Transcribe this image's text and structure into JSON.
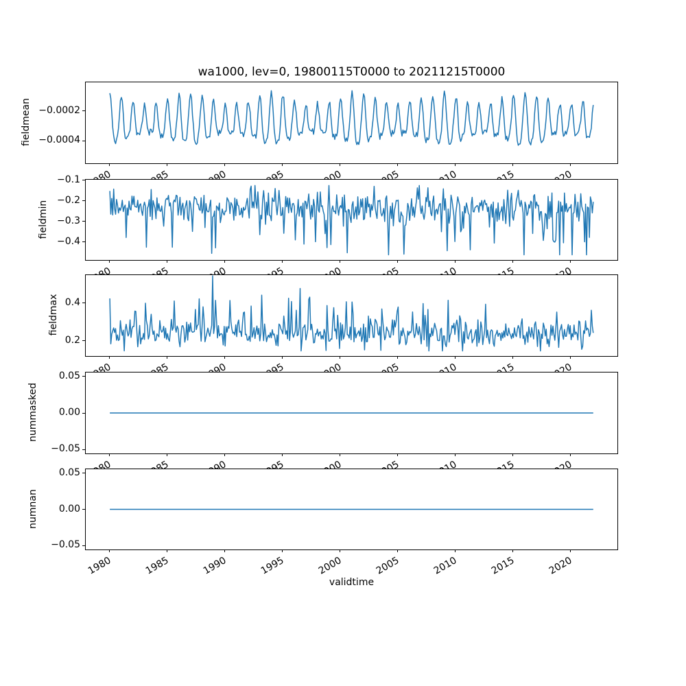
{
  "figure": {
    "title": "wa1000, lev=0, 19800115T0000 to 20211215T0000",
    "xlabel": "validtime",
    "background_color": "#ffffff",
    "line_color": "#1f77b4",
    "axis_color": "#000000",
    "time_start": "19800115T0000",
    "time_end": "20211215T0000",
    "x_ticks": {
      "values": [
        1980,
        1985,
        1990,
        1995,
        2000,
        2005,
        2010,
        2015,
        2020
      ],
      "labels": [
        "1980",
        "1985",
        "1990",
        "1995",
        "2000",
        "2005",
        "2010",
        "2015",
        "2020"
      ],
      "rotation_deg": 30
    },
    "xlim": [
      1977.95,
      2024.05
    ],
    "x_start_decimal": 1980.0397,
    "x_end_decimal": 2021.958,
    "points_per_year": 12,
    "n_points": 504
  },
  "chart_data": [
    {
      "type": "line",
      "name": "fieldmean",
      "ylabel": "fieldmean",
      "ytick_values": [
        -0.0002,
        -0.0004
      ],
      "ytick_labels": [
        "−0.0002",
        "−0.0004"
      ],
      "ylim": [
        -0.000553,
        -5e-06
      ],
      "description": "annual seasonal oscillation, peaks near -0.00007, troughs near -0.0005",
      "signal": {
        "kind": "seasonal",
        "base": -0.00028,
        "amp": 0.00013,
        "amp_mod": 4e-05,
        "amp_mod_period": 7.3,
        "amp_mod_phase": 0.5,
        "phase": 0.79,
        "harmonic2_amp": 3.5e-05,
        "harmonic2_phase": 0.9,
        "noise": 2.2e-05,
        "clip": [
          -0.000525,
          -6.2e-05
        ],
        "seed": 11
      }
    },
    {
      "type": "line",
      "name": "fieldmin",
      "ylabel": "fieldmin",
      "ytick_values": [
        -0.1,
        -0.2,
        -0.3,
        -0.4
      ],
      "ytick_labels": [
        "−0.1",
        "−0.2",
        "−0.3",
        "−0.4"
      ],
      "ylim": [
        -0.487,
        -0.097
      ],
      "description": "noisy band around -0.24 with downward spikes to about -0.46",
      "signal": {
        "kind": "noisy",
        "base": -0.235,
        "sigma": 0.042,
        "spike_prob": 0.05,
        "spike_sign": -1,
        "spike_min": 0.07,
        "spike_max": 0.2,
        "clip": [
          -0.462,
          -0.125
        ],
        "seed": 23,
        "forced": [
          {
            "x": 1988.87,
            "v": -0.455
          },
          {
            "x": 1989.2,
            "v": -0.428
          },
          {
            "x": 2000.6,
            "v": -0.452
          },
          {
            "x": 1985.45,
            "v": -0.425
          },
          {
            "x": 2013.4,
            "v": -0.405
          },
          {
            "x": 2018.55,
            "v": -0.398
          },
          {
            "x": 1996.9,
            "v": -0.41
          }
        ]
      }
    },
    {
      "type": "line",
      "name": "fieldmax",
      "ylabel": "fieldmax",
      "ytick_values": [
        0.4,
        0.2
      ],
      "ytick_labels": [
        "0.4",
        "0.2"
      ],
      "ylim": [
        0.12,
        0.549
      ],
      "description": "noisy band around 0.25 with upward spikes, largest about 0.55 near 1989",
      "signal": {
        "kind": "noisy",
        "base": 0.243,
        "sigma": 0.038,
        "spike_prob": 0.06,
        "spike_sign": 1,
        "spike_min": 0.05,
        "spike_max": 0.17,
        "clip": [
          0.147,
          0.5
        ],
        "seed": 37,
        "forced": [
          {
            "x": 1988.95,
            "v": 0.545
          },
          {
            "x": 1996.55,
            "v": 0.478
          },
          {
            "x": 1993.2,
            "v": 0.443
          },
          {
            "x": 1983.1,
            "v": 0.4
          },
          {
            "x": 1997.35,
            "v": 0.432
          },
          {
            "x": 2007.2,
            "v": 0.398
          },
          {
            "x": 1989.2,
            "v": 0.415
          }
        ]
      }
    },
    {
      "type": "line",
      "name": "nummasked",
      "ylabel": "nummasked",
      "ytick_values": [
        0.05,
        0.0,
        -0.05
      ],
      "ytick_labels": [
        "0.05",
        "0.00",
        "−0.05"
      ],
      "ylim": [
        -0.0555,
        0.0555
      ],
      "description": "constant zero line",
      "signal": {
        "kind": "constant",
        "value": 0,
        "seed": 1
      }
    },
    {
      "type": "line",
      "name": "numnan",
      "ylabel": "numnan",
      "ytick_values": [
        0.05,
        0.0,
        -0.05
      ],
      "ytick_labels": [
        "0.05",
        "0.00",
        "−0.05"
      ],
      "ylim": [
        -0.0555,
        0.0555
      ],
      "description": "constant zero line",
      "signal": {
        "kind": "constant",
        "value": 0,
        "seed": 1
      }
    }
  ]
}
